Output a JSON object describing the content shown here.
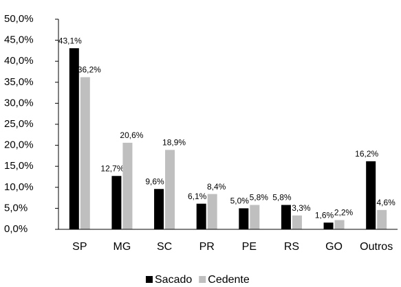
{
  "chart_data": {
    "type": "bar",
    "categories": [
      "SP",
      "MG",
      "SC",
      "PR",
      "PE",
      "RS",
      "GO",
      "Outros"
    ],
    "series": [
      {
        "name": "Sacado",
        "color": "#000000",
        "values": [
          43.1,
          12.7,
          9.6,
          6.1,
          5.0,
          5.8,
          1.6,
          16.2
        ],
        "value_labels": [
          "43,1%",
          "12,7%",
          "9,6%",
          "6,1%",
          "5,0%",
          "5,8%",
          "1,6%",
          "16,2%"
        ]
      },
      {
        "name": "Cedente",
        "color": "#bfbfbf",
        "values": [
          36.2,
          20.6,
          18.9,
          8.4,
          5.8,
          3.3,
          2.2,
          4.6
        ],
        "value_labels": [
          "36,2%",
          "20,6%",
          "18,9%",
          "8,4%",
          "5,8%",
          "3,3%",
          "2,2%",
          "4,6%"
        ]
      }
    ],
    "ylim": [
      0,
      50
    ],
    "yticks": [
      {
        "value": 0,
        "label": "0,0%"
      },
      {
        "value": 5,
        "label": "5,0%"
      },
      {
        "value": 10,
        "label": "10,0%"
      },
      {
        "value": 15,
        "label": "15,0%"
      },
      {
        "value": 20,
        "label": "20,0%"
      },
      {
        "value": 25,
        "label": "25,0%"
      },
      {
        "value": 30,
        "label": "30,0%"
      },
      {
        "value": 35,
        "label": "35,0%"
      },
      {
        "value": 40,
        "label": "40,0%"
      },
      {
        "value": 45,
        "label": "45,0%"
      },
      {
        "value": 50,
        "label": "50,0%"
      }
    ],
    "grid": false,
    "legend": "bottom"
  }
}
